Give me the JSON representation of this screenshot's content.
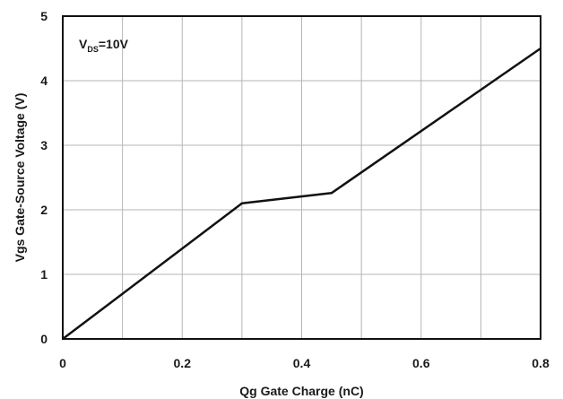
{
  "chart_data": {
    "type": "line",
    "title": "",
    "xlabel": "Qg Gate Charge (nC)",
    "ylabel": "Vgs Gate-Source Voltage (V)",
    "xlim": [
      0,
      0.8
    ],
    "ylim": [
      0,
      5
    ],
    "x_ticks": [
      "0",
      "0.2",
      "0.4",
      "0.6",
      "0.8"
    ],
    "y_ticks": [
      "0",
      "1",
      "2",
      "3",
      "4",
      "5"
    ],
    "grid": true,
    "legend": "none",
    "annotation": {
      "main": "V",
      "subscript": "DS",
      "suffix": "=10V",
      "placement": "top-left"
    },
    "series": [
      {
        "x": [
          0,
          0.3,
          0.45,
          0.8
        ],
        "y": [
          0,
          2.1,
          2.26,
          4.5
        ],
        "color": "#111111"
      }
    ]
  }
}
